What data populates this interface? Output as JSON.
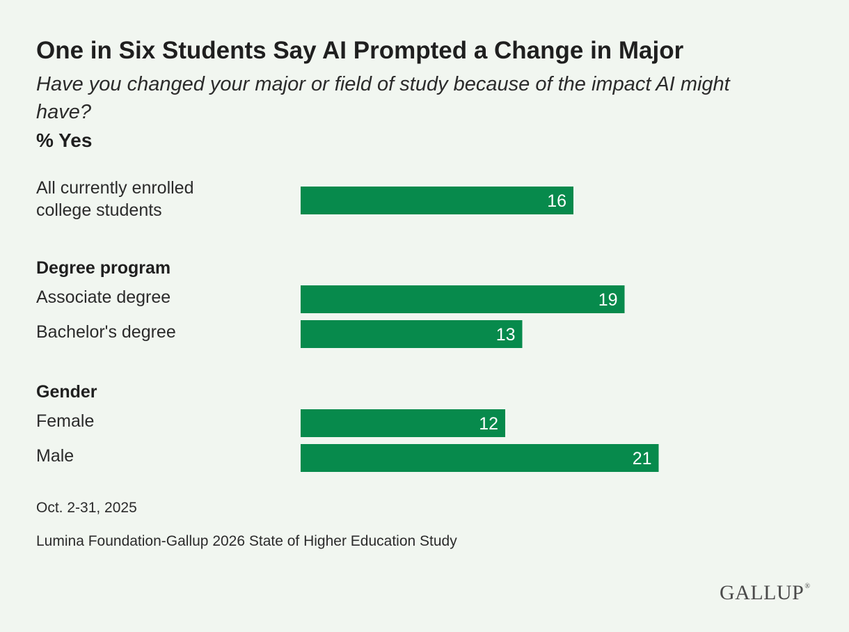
{
  "title": "One in Six Students Say AI Prompted a Change in Major",
  "subtitle": "Have you changed your major or field of study because of the impact AI might have?",
  "measure": "% Yes",
  "chart_data": {
    "type": "bar",
    "orientation": "horizontal",
    "categories": [
      "All currently enrolled college students",
      "Associate degree",
      "Bachelor's degree",
      "Female",
      "Male"
    ],
    "groups": [
      {
        "label": "",
        "categories": [
          "All currently enrolled college students"
        ]
      },
      {
        "label": "Degree program",
        "categories": [
          "Associate degree",
          "Bachelor's degree"
        ]
      },
      {
        "label": "Gender",
        "categories": [
          "Female",
          "Male"
        ]
      }
    ],
    "values": [
      16,
      19,
      13,
      12,
      21
    ],
    "xlim": [
      0,
      32
    ],
    "grid": false,
    "data_labels": "inside-end",
    "bar_color": "#078a4c"
  },
  "footer": {
    "date": "Oct. 2-31, 2025",
    "source": "Lumina Foundation-Gallup 2026 State of Higher Education Study"
  },
  "logo": {
    "text": "GALLUP",
    "mark": "®"
  },
  "colors": {
    "background": "#f1f6f0",
    "bar": "#078a4c",
    "text": "#222222"
  }
}
